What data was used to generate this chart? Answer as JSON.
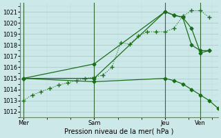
{
  "title": "Pression niveau de la mer( hPa )",
  "background_color": "#cce8e8",
  "grid_major_color": "#aacccc",
  "grid_minor_color": "#bbdddd",
  "line_color": "#1a6e1a",
  "vline_color": "#336633",
  "ylim": [
    1011.5,
    1021.8
  ],
  "yticks": [
    1012,
    1013,
    1014,
    1015,
    1016,
    1017,
    1018,
    1019,
    1020,
    1021
  ],
  "xtick_labels": [
    "Mer",
    "Sam",
    "Jeu",
    "Ven"
  ],
  "xtick_positions": [
    0,
    24,
    48,
    60
  ],
  "xlim": [
    -1,
    66
  ],
  "vline_positions": [
    0,
    24,
    48,
    60
  ],
  "dotted_line": {
    "x": [
      0,
      3,
      6,
      9,
      12,
      15,
      18,
      21,
      24,
      27,
      30,
      33,
      36,
      39,
      42,
      45,
      48,
      51,
      54,
      57,
      60,
      63
    ],
    "y": [
      1013.0,
      1013.5,
      1013.8,
      1014.1,
      1014.4,
      1014.6,
      1014.8,
      1015.0,
      1015.1,
      1015.3,
      1016.0,
      1018.2,
      1018.1,
      1018.8,
      1019.2,
      1019.2,
      1019.2,
      1019.5,
      1020.6,
      1021.1,
      1021.1,
      1020.5
    ]
  },
  "solid_lines": [
    {
      "x": [
        0,
        24,
        48,
        51,
        54,
        57,
        60,
        63
      ],
      "y": [
        1015.0,
        1015.0,
        1021.0,
        1020.7,
        1020.5,
        1019.5,
        1017.3,
        1017.5
      ]
    },
    {
      "x": [
        0,
        24,
        48,
        51,
        54,
        57,
        60,
        63
      ],
      "y": [
        1015.0,
        1016.3,
        1021.0,
        1020.7,
        1020.5,
        1018.0,
        1017.5,
        1017.5
      ]
    },
    {
      "x": [
        0,
        24,
        48,
        51,
        54,
        57,
        60,
        63,
        66
      ],
      "y": [
        1015.0,
        1014.7,
        1015.0,
        1014.8,
        1014.5,
        1014.0,
        1013.5,
        1013.0,
        1012.3
      ]
    }
  ]
}
